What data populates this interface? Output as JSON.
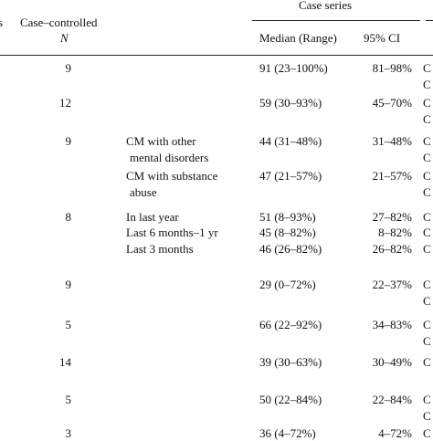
{
  "header": {
    "cut_left": "s",
    "n_title": "Case–controlled",
    "n_symbol": "N",
    "group_title": "Case series",
    "median": "Median (Range)",
    "ci": "95% CI"
  },
  "rows": [
    {
      "n": "9",
      "median": "91 (23–100%)",
      "ci": "81–98%",
      "right": [
        "C",
        "C"
      ]
    },
    {
      "n": "12",
      "median": "59 (30–93%)",
      "ci": "45–70%",
      "right": [
        "C",
        "C"
      ]
    },
    {
      "n": "9",
      "subgroup": [
        "CM with other",
        "mental disorders"
      ],
      "median": "44 (31–48%)",
      "ci": "31–48%",
      "right": [
        "C",
        "C"
      ]
    },
    {
      "subgroup": [
        "CM with substance",
        "abuse"
      ],
      "median": "47 (21–57%)",
      "ci": "21–57%",
      "right": [
        "C",
        "C"
      ]
    },
    {
      "n": "8",
      "subgroup": [
        "In last year"
      ],
      "median": "51 (8–93%)",
      "ci": "27–82%",
      "right": [
        "C"
      ]
    },
    {
      "subgroup": [
        "Last 6 months–1 yr"
      ],
      "median": "45 (8–82%)",
      "ci": "8–82%",
      "right": [
        "C"
      ]
    },
    {
      "subgroup": [
        "Last 3 months"
      ],
      "median": "46 (26–82%)",
      "ci": "26–82%",
      "right": [
        "C"
      ]
    },
    {
      "n": "9",
      "median": "29 (0–72%)",
      "ci": "22–37%",
      "right": [
        "C",
        "C"
      ]
    },
    {
      "n": "5",
      "median": "66 (22–92%)",
      "ci": "34–83%",
      "right": [
        "C",
        "C"
      ]
    },
    {
      "n": "14",
      "median": "39 (30–63%)",
      "ci": "30–49%",
      "right": [
        "C"
      ]
    },
    {
      "n": "5",
      "median": "50 (22–84%)",
      "ci": "22–84%",
      "right": [
        "C",
        "C"
      ]
    },
    {
      "n": "3",
      "median": "36 (4–72%)",
      "ci": "4–72%",
      "right": [
        "C"
      ]
    }
  ]
}
